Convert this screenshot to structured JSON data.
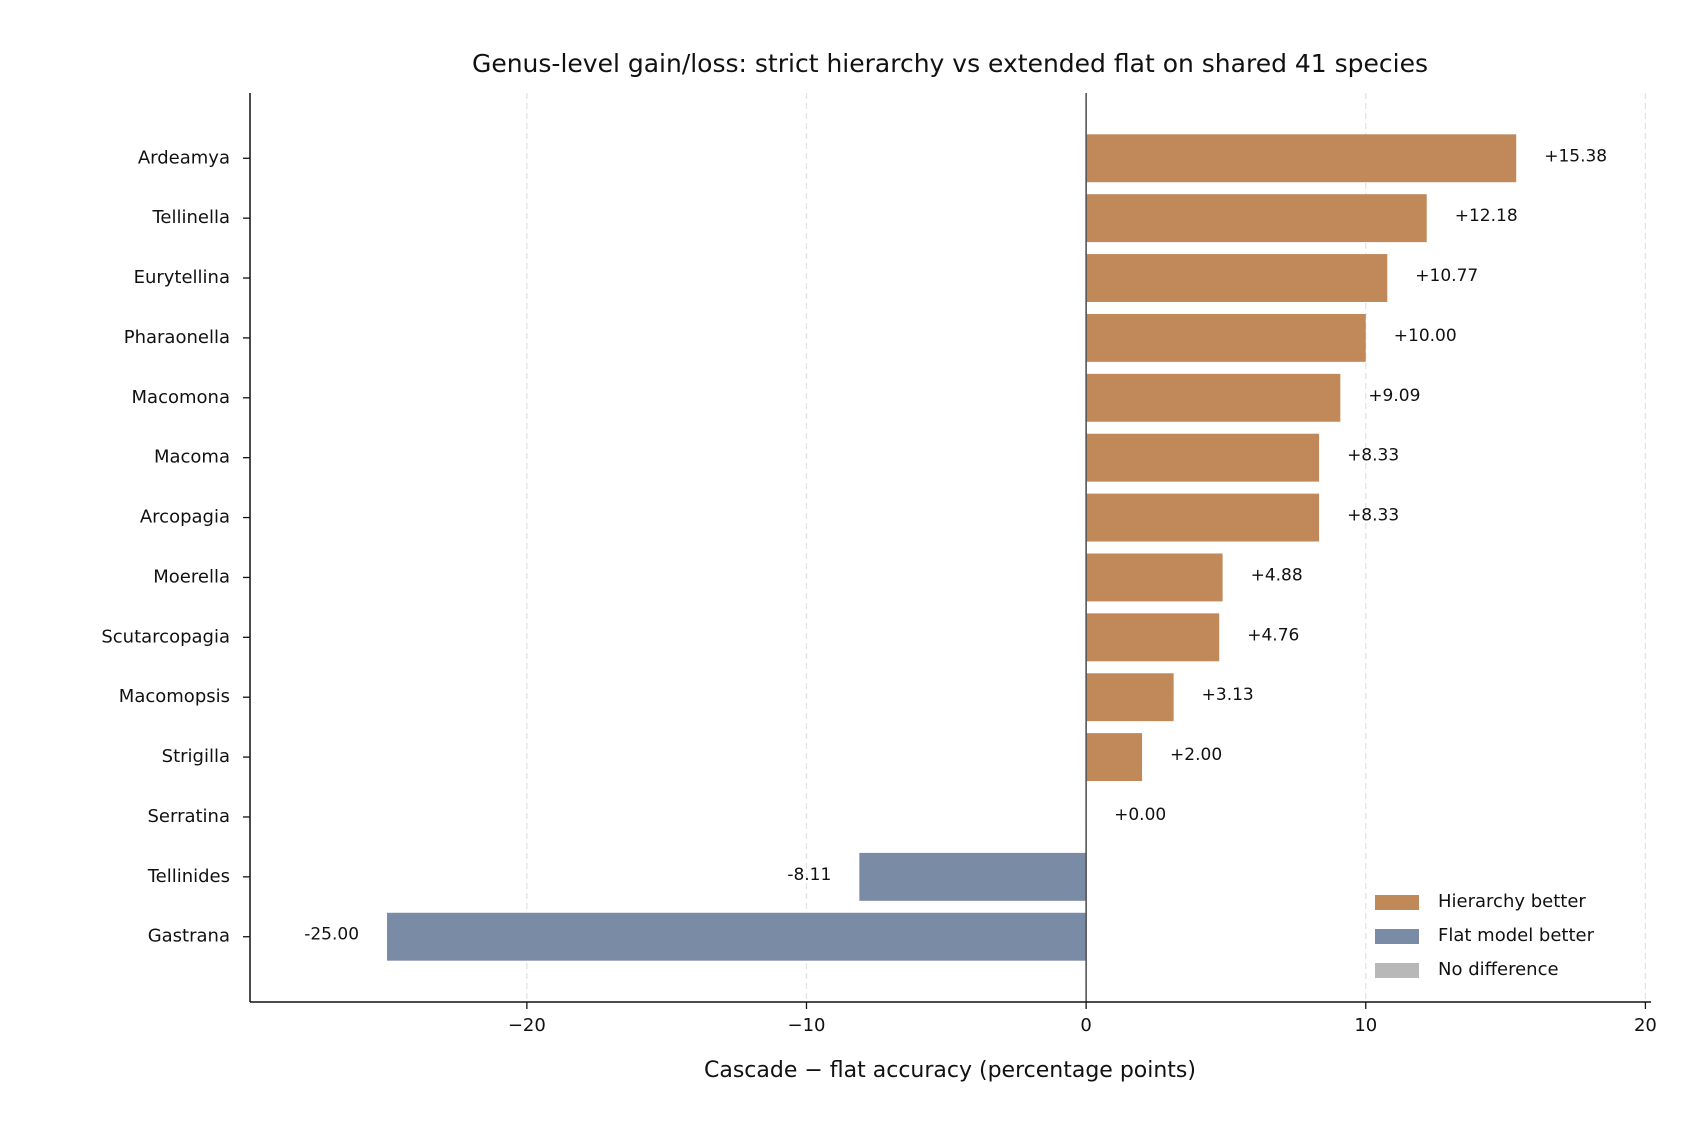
{
  "chart_data": {
    "type": "barh",
    "title": "Genus-level gain/loss: strict hierarchy vs extended flat on shared 41 species",
    "xlabel": "Cascade − flat accuracy (percentage points)",
    "categories": [
      "Ardeamya",
      "Tellinella",
      "Eurytellina",
      "Pharaonella",
      "Macomona",
      "Macoma",
      "Arcopagia",
      "Moerella",
      "Scutarcopagia",
      "Macomopsis",
      "Strigilla",
      "Serratina",
      "Tellinides",
      "Gastrana"
    ],
    "values": [
      15.38,
      12.18,
      10.77,
      10.0,
      9.09,
      8.33,
      8.33,
      4.88,
      4.76,
      3.13,
      2.0,
      0.0,
      -8.11,
      -25.0
    ],
    "value_labels": [
      "+15.38",
      "+12.18",
      "+10.77",
      "+10.00",
      "+9.09",
      "+8.33",
      "+8.33",
      "+4.88",
      "+4.76",
      "+3.13",
      "+2.00",
      "+0.00",
      "-8.11",
      "-25.00"
    ],
    "xlim": [
      -29.9,
      20.2
    ],
    "xticks": [
      {
        "value": -20,
        "label": "−20"
      },
      {
        "value": -10,
        "label": "−10"
      },
      0,
      10,
      20
    ],
    "grid": true,
    "legend": {
      "position": "lower right",
      "items": [
        {
          "name": "Hierarchy better",
          "color": "#c1895a"
        },
        {
          "name": "Flat model better",
          "color": "#7a8ba5"
        },
        {
          "name": "No difference",
          "color": "#b8b8b8"
        }
      ]
    }
  }
}
